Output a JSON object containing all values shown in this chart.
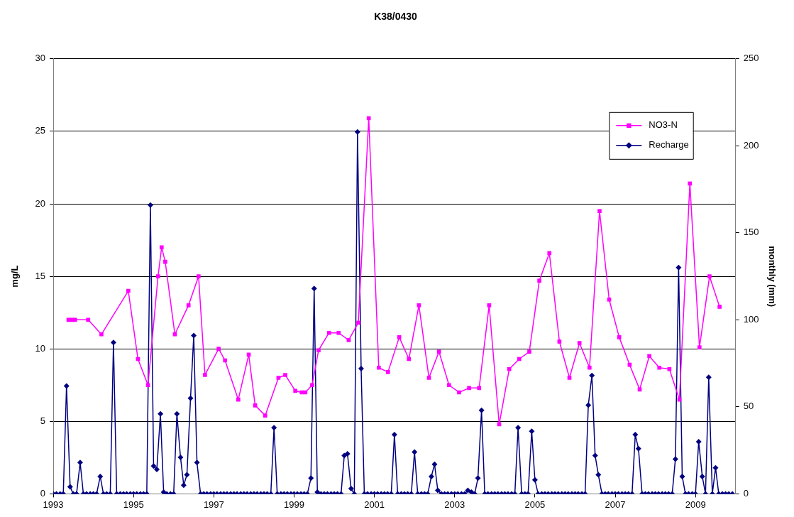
{
  "chart_data": {
    "type": "line",
    "title": "K38/0430",
    "ylabel": "mg/L",
    "y2label": "monthly (mm)",
    "xlim": [
      1993,
      2010
    ],
    "xticks": [
      1993,
      1995,
      1997,
      1999,
      2001,
      2003,
      2005,
      2007,
      2009
    ],
    "ylim": [
      0,
      30
    ],
    "yticks": [
      0,
      5,
      10,
      15,
      20,
      25,
      30
    ],
    "y2lim": [
      0,
      250
    ],
    "y2ticks": [
      0,
      50,
      100,
      150,
      200,
      250
    ],
    "grid": "y",
    "legend": "top right",
    "series": [
      {
        "name": "NO3-N",
        "color": "#ff00ff",
        "marker": "square",
        "x": [
          1993.38,
          1993.46,
          1993.54,
          1993.87,
          1994.2,
          1994.87,
          1995.11,
          1995.36,
          1995.61,
          1995.7,
          1995.79,
          1996.03,
          1996.37,
          1996.62,
          1996.78,
          1997.12,
          1997.28,
          1997.61,
          1997.87,
          1998.03,
          1998.28,
          1998.61,
          1998.78,
          1999.03,
          1999.19,
          1999.28,
          1999.45,
          1999.61,
          1999.87,
          2000.11,
          2000.36,
          2000.6,
          2000.86,
          2001.11,
          2001.34,
          2001.62,
          2001.86,
          2002.11,
          2002.36,
          2002.61,
          2002.86,
          2003.11,
          2003.36,
          2003.61,
          2003.86,
          2004.11,
          2004.36,
          2004.61,
          2004.86,
          2005.11,
          2005.36,
          2005.61,
          2005.86,
          2006.11,
          2006.36,
          2006.61,
          2006.85,
          2007.1,
          2007.36,
          2007.61,
          2007.85,
          2008.1,
          2008.35,
          2008.6,
          2008.86,
          2009.1,
          2009.35,
          2009.6
        ],
        "values": [
          12,
          12,
          12,
          12,
          11,
          14,
          9.3,
          7.5,
          15,
          17,
          16,
          11,
          13,
          15,
          8.2,
          10,
          9.2,
          6.5,
          9.6,
          6.1,
          5.4,
          8,
          8.2,
          7.1,
          7,
          7,
          7.5,
          9.9,
          11.1,
          11.1,
          10.6,
          11.8,
          25.9,
          8.7,
          8.4,
          10.8,
          9.3,
          13,
          8,
          9.8,
          7.5,
          7,
          7.3,
          7.3,
          13,
          4.8,
          8.6,
          9.3,
          9.8,
          14.7,
          16.6,
          10.5,
          8,
          10.4,
          8.7,
          19.5,
          13.4,
          10.8,
          8.9,
          7.2,
          9.5,
          8.7,
          8.6,
          6.5,
          21.4,
          10.1,
          15,
          12.9
        ]
      },
      {
        "name": "Recharge",
        "color": "#000080",
        "marker": "diamond",
        "axis": "y2",
        "x": [
          1993,
          1993.08,
          1993.17,
          1993.25,
          1993.33,
          1993.42,
          1993.5,
          1993.58,
          1993.67,
          1993.75,
          1993.83,
          1993.92,
          1994,
          1994.08,
          1994.17,
          1994.25,
          1994.33,
          1994.42,
          1994.5,
          1994.58,
          1994.67,
          1994.75,
          1994.83,
          1994.92,
          1995,
          1995.08,
          1995.17,
          1995.25,
          1995.33,
          1995.42,
          1995.5,
          1995.58,
          1995.67,
          1995.75,
          1995.83,
          1995.92,
          1996,
          1996.08,
          1996.17,
          1996.25,
          1996.33,
          1996.42,
          1996.5,
          1996.58,
          1996.67,
          1996.75,
          1996.83,
          1996.92,
          1997,
          1997.08,
          1997.17,
          1997.25,
          1997.33,
          1997.42,
          1997.5,
          1997.58,
          1997.67,
          1997.75,
          1997.83,
          1997.92,
          1998,
          1998.08,
          1998.17,
          1998.25,
          1998.33,
          1998.42,
          1998.5,
          1998.58,
          1998.67,
          1998.75,
          1998.83,
          1998.92,
          1999,
          1999.08,
          1999.17,
          1999.25,
          1999.33,
          1999.42,
          1999.5,
          1999.58,
          1999.67,
          1999.75,
          1999.83,
          1999.92,
          2000,
          2000.08,
          2000.17,
          2000.25,
          2000.33,
          2000.42,
          2000.5,
          2000.58,
          2000.67,
          2000.75,
          2000.83,
          2000.92,
          2001,
          2001.08,
          2001.17,
          2001.25,
          2001.33,
          2001.42,
          2001.5,
          2001.58,
          2001.67,
          2001.75,
          2001.83,
          2001.92,
          2002,
          2002.08,
          2002.17,
          2002.25,
          2002.33,
          2002.42,
          2002.5,
          2002.58,
          2002.67,
          2002.75,
          2002.83,
          2002.92,
          2003,
          2003.08,
          2003.17,
          2003.25,
          2003.33,
          2003.42,
          2003.5,
          2003.58,
          2003.67,
          2003.75,
          2003.83,
          2003.92,
          2004,
          2004.08,
          2004.17,
          2004.25,
          2004.33,
          2004.42,
          2004.5,
          2004.58,
          2004.67,
          2004.75,
          2004.83,
          2004.92,
          2005,
          2005.08,
          2005.17,
          2005.25,
          2005.33,
          2005.42,
          2005.5,
          2005.58,
          2005.67,
          2005.75,
          2005.83,
          2005.92,
          2006,
          2006.08,
          2006.17,
          2006.25,
          2006.33,
          2006.42,
          2006.5,
          2006.58,
          2006.67,
          2006.75,
          2006.83,
          2006.92,
          2007,
          2007.08,
          2007.17,
          2007.25,
          2007.33,
          2007.42,
          2007.5,
          2007.58,
          2007.67,
          2007.75,
          2007.83,
          2007.92,
          2008,
          2008.08,
          2008.17,
          2008.25,
          2008.33,
          2008.42,
          2008.5,
          2008.58,
          2008.67,
          2008.75,
          2008.83,
          2008.92,
          2009,
          2009.08,
          2009.17,
          2009.25,
          2009.33,
          2009.42,
          2009.5,
          2009.58,
          2009.67,
          2009.75,
          2009.83,
          2009.92
        ],
        "values": [
          0,
          0,
          0,
          0,
          62,
          4,
          0,
          0,
          18,
          0,
          0,
          0,
          0,
          0,
          10,
          0,
          0,
          0,
          87,
          0,
          0,
          0,
          0,
          0,
          0,
          0,
          0,
          0,
          0,
          166,
          16,
          14,
          46,
          1,
          0,
          0,
          0,
          46,
          21,
          5,
          11,
          55,
          91,
          18,
          0,
          0,
          0,
          0,
          0,
          0,
          0,
          0,
          0,
          0,
          0,
          0,
          0,
          0,
          0,
          0,
          0,
          0,
          0,
          0,
          0,
          0,
          38,
          0,
          0,
          0,
          0,
          0,
          0,
          0,
          0,
          0,
          0,
          9,
          118,
          1,
          0,
          0,
          0,
          0,
          0,
          0,
          0,
          22,
          23,
          3,
          0,
          208,
          72,
          0,
          0,
          0,
          0,
          0,
          0,
          0,
          0,
          0,
          34,
          0,
          0,
          0,
          0,
          0,
          24,
          0,
          0,
          0,
          0,
          10,
          17,
          2,
          0,
          0,
          0,
          0,
          0,
          0,
          0,
          0,
          2,
          1,
          0,
          9,
          48,
          0,
          0,
          0,
          0,
          0,
          0,
          0,
          0,
          0,
          0,
          38,
          0,
          0,
          0,
          36,
          8,
          0,
          0,
          0,
          0,
          0,
          0,
          0,
          0,
          0,
          0,
          0,
          0,
          0,
          0,
          0,
          51,
          68,
          22,
          11,
          0,
          0,
          0,
          0,
          0,
          0,
          0,
          0,
          0,
          0,
          34,
          26,
          0,
          0,
          0,
          0,
          0,
          0,
          0,
          0,
          0,
          0,
          20,
          130,
          10,
          0,
          0,
          0,
          0,
          30,
          10,
          0,
          67,
          0,
          15,
          0,
          0,
          0,
          0,
          0
        ]
      }
    ]
  }
}
